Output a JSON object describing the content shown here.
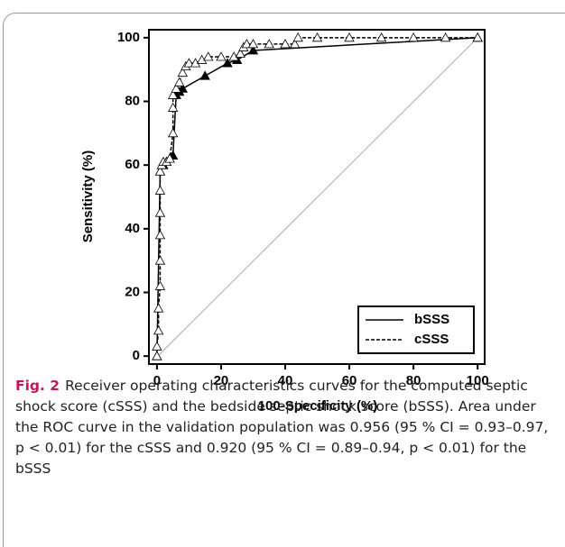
{
  "chart_data": {
    "type": "line",
    "x_label": "100-Specificity (%)",
    "y_label": "Sensitivity (%)",
    "xlim": [
      -2.5,
      102.2
    ],
    "ylim": [
      -2.5,
      102.5
    ],
    "xticks": [
      0,
      20,
      40,
      60,
      80,
      100
    ],
    "yticks": [
      0,
      20,
      40,
      60,
      80,
      100
    ],
    "legend": "lower right",
    "series": [
      {
        "name": "bSSS",
        "color": "#000000",
        "dash": "solid",
        "marker_fill": "#000000",
        "x": [
          0,
          1,
          2,
          3,
          4,
          5,
          6,
          7,
          8,
          15,
          22,
          25,
          30,
          100
        ],
        "values": [
          0,
          58,
          60,
          61,
          62,
          63,
          82,
          83,
          84,
          88,
          92,
          93,
          96,
          100
        ]
      },
      {
        "name": "cSSS",
        "color": "#000000",
        "dash": "dashed",
        "marker_fill": "#ffffff",
        "x": [
          0,
          0,
          0.5,
          0.5,
          1,
          1,
          1,
          1,
          1,
          1,
          1.5,
          2,
          3,
          4,
          5,
          5,
          5,
          6,
          7,
          8,
          9,
          10,
          12,
          14,
          16,
          20,
          24,
          26,
          27,
          28,
          30,
          35,
          40,
          43,
          44,
          50,
          60,
          70,
          80,
          90,
          100
        ],
        "values": [
          0,
          3,
          8,
          15,
          22,
          30,
          38,
          45,
          52,
          58,
          60,
          61,
          61,
          62,
          70,
          78,
          82,
          84,
          86,
          89,
          91,
          92,
          92,
          93,
          94,
          94,
          94,
          95,
          97,
          98,
          98,
          98,
          98,
          98,
          100,
          100,
          100,
          100,
          100,
          100,
          100
        ]
      }
    ]
  },
  "caption": {
    "label": "Fig. 2",
    "text": "Receiver operating characteristics curves for the computed septic shock score (cSSS) and the bedside septic shock score (bSSS). Area under the ROC curve in the validation population was 0.956 (95 % CI = 0.93–0.97, p < 0.01) for the cSSS and 0.920 (95 % CI = 0.89–0.94, p < 0.01) for the bSSS"
  }
}
